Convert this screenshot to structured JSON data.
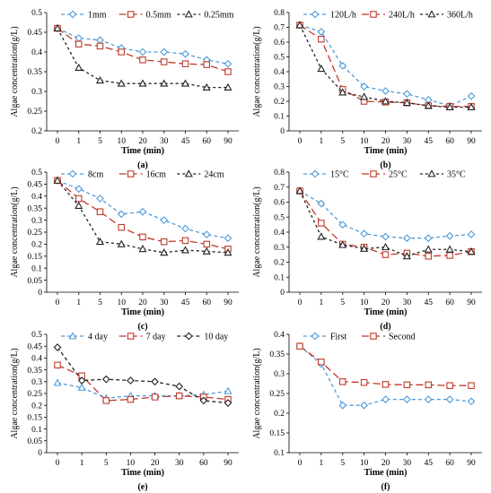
{
  "figure": {
    "xlabel": "Time (min)",
    "ylabel": "Algae concentration(g/L)",
    "x_ticks": [
      "0",
      "1",
      "5",
      "10",
      "20",
      "30",
      "45",
      "60",
      "90"
    ]
  },
  "chart_data": [
    {
      "type": "line",
      "panel_label": "(a)",
      "xlabel": "Time (min)",
      "ylabel": "Algae concentration(g/L)",
      "categories": [
        "0",
        "1",
        "5",
        "10",
        "20",
        "30",
        "45",
        "60",
        "90"
      ],
      "ylim": [
        0.2,
        0.5
      ],
      "yticks": [
        "0.2",
        "0.25",
        "0.3",
        "0.35",
        "0.4",
        "0.45",
        "0.5"
      ],
      "legend": "top",
      "grid": false,
      "series": [
        {
          "name": "1mm",
          "color": "#4F9BD9",
          "marker": "diamond",
          "dash": "4,3",
          "values": [
            0.46,
            0.435,
            0.43,
            0.41,
            0.4,
            0.4,
            0.395,
            0.38,
            0.37
          ]
        },
        {
          "name": "0.5mm",
          "color": "#C0392B",
          "marker": "square",
          "dash": "8,4",
          "values": [
            0.46,
            0.42,
            0.415,
            0.4,
            0.38,
            0.375,
            0.37,
            0.368,
            0.35
          ]
        },
        {
          "name": "0.25mm",
          "color": "#222222",
          "marker": "triangle",
          "dash": "3,3",
          "values": [
            0.46,
            0.36,
            0.328,
            0.32,
            0.32,
            0.32,
            0.32,
            0.31,
            0.31
          ]
        }
      ]
    },
    {
      "type": "line",
      "panel_label": "(b)",
      "xlabel": "Time (min)",
      "ylabel": "Algae concentration(g/L)",
      "categories": [
        "0",
        "1",
        "5",
        "10",
        "20",
        "30",
        "45",
        "60",
        "90"
      ],
      "ylim": [
        0,
        0.8
      ],
      "yticks": [
        "0",
        "0.1",
        "0.2",
        "0.3",
        "0.4",
        "0.5",
        "0.6",
        "0.7",
        "0.8"
      ],
      "legend": "top",
      "grid": false,
      "series": [
        {
          "name": "120L/h",
          "color": "#4F9BD9",
          "marker": "diamond",
          "dash": "4,3",
          "values": [
            0.715,
            0.67,
            0.44,
            0.3,
            0.27,
            0.25,
            0.21,
            0.17,
            0.235
          ]
        },
        {
          "name": "240L/h",
          "color": "#C0392B",
          "marker": "square",
          "dash": "8,4",
          "values": [
            0.715,
            0.62,
            0.28,
            0.2,
            0.195,
            0.19,
            0.17,
            0.165,
            0.165
          ]
        },
        {
          "name": "360L/h",
          "color": "#222222",
          "marker": "triangle",
          "dash": "3,3",
          "values": [
            0.715,
            0.42,
            0.26,
            0.23,
            0.2,
            0.19,
            0.17,
            0.16,
            0.16
          ]
        }
      ]
    },
    {
      "type": "line",
      "panel_label": "(c)",
      "xlabel": "Time (min)",
      "ylabel": "Algae concentration(g/L)",
      "categories": [
        "0",
        "1",
        "5",
        "10",
        "20",
        "30",
        "45",
        "60",
        "90"
      ],
      "ylim": [
        0,
        0.5
      ],
      "yticks": [
        "0",
        "0.05",
        "0.1",
        "0.15",
        "0.2",
        "0.25",
        "0.3",
        "0.35",
        "0.4",
        "0.45",
        "0.5"
      ],
      "legend": "top",
      "grid": false,
      "series": [
        {
          "name": "8cm",
          "color": "#4F9BD9",
          "marker": "diamond",
          "dash": "4,3",
          "values": [
            0.465,
            0.43,
            0.39,
            0.325,
            0.335,
            0.3,
            0.265,
            0.24,
            0.225
          ]
        },
        {
          "name": "16cm",
          "color": "#C0392B",
          "marker": "square",
          "dash": "8,4",
          "values": [
            0.465,
            0.39,
            0.335,
            0.27,
            0.23,
            0.21,
            0.215,
            0.2,
            0.18
          ]
        },
        {
          "name": "24cm",
          "color": "#222222",
          "marker": "triangle",
          "dash": "3,3",
          "values": [
            0.465,
            0.36,
            0.21,
            0.2,
            0.18,
            0.165,
            0.175,
            0.17,
            0.165
          ]
        }
      ]
    },
    {
      "type": "line",
      "panel_label": "(d)",
      "xlabel": "Time (min)",
      "ylabel": "Algae concentration(g/L)",
      "categories": [
        "0",
        "1",
        "5",
        "10",
        "20",
        "30",
        "45",
        "60",
        "90"
      ],
      "ylim": [
        0,
        0.8
      ],
      "yticks": [
        "0",
        "0.1",
        "0.2",
        "0.3",
        "0.4",
        "0.5",
        "0.6",
        "0.7",
        "0.8"
      ],
      "legend": "top",
      "grid": false,
      "series": [
        {
          "name": "15°C",
          "color": "#4F9BD9",
          "marker": "diamond",
          "dash": "4,3",
          "values": [
            0.675,
            0.59,
            0.45,
            0.39,
            0.37,
            0.36,
            0.36,
            0.375,
            0.385
          ]
        },
        {
          "name": "25°C",
          "color": "#C0392B",
          "marker": "square",
          "dash": "8,4",
          "values": [
            0.675,
            0.46,
            0.32,
            0.3,
            0.25,
            0.26,
            0.24,
            0.245,
            0.27
          ]
        },
        {
          "name": "35°C",
          "color": "#222222",
          "marker": "triangle",
          "dash": "3,3",
          "values": [
            0.675,
            0.37,
            0.315,
            0.29,
            0.3,
            0.24,
            0.285,
            0.285,
            0.27
          ]
        }
      ]
    },
    {
      "type": "line",
      "panel_label": "(e)",
      "xlabel": "Time (min)",
      "ylabel": "Algae concentration(g/L)",
      "categories": [
        "0",
        "1",
        "5",
        "10",
        "20",
        "30",
        "60",
        "90"
      ],
      "ylim": [
        0,
        0.5
      ],
      "yticks": [
        "0",
        "0.05",
        "0.1",
        "0.15",
        "0.2",
        "0.25",
        "0.3",
        "0.35",
        "0.4",
        "0.45",
        "0.5"
      ],
      "legend": "top",
      "grid": false,
      "series": [
        {
          "name": "4 day",
          "color": "#4F9BD9",
          "marker": "triangle",
          "dash": "4,3",
          "values": [
            0.295,
            0.275,
            0.23,
            0.24,
            0.24,
            0.24,
            0.245,
            0.26
          ]
        },
        {
          "name": "7 day",
          "color": "#C0392B",
          "marker": "square",
          "dash": "8,4",
          "values": [
            0.37,
            0.325,
            0.22,
            0.225,
            0.235,
            0.24,
            0.235,
            0.225
          ]
        },
        {
          "name": "10 day",
          "color": "#222222",
          "marker": "diamond",
          "dash": "4,3",
          "values": [
            0.445,
            0.305,
            0.31,
            0.305,
            0.3,
            0.28,
            0.22,
            0.21
          ]
        }
      ]
    },
    {
      "type": "line",
      "panel_label": "(f)",
      "xlabel": "Time (min)",
      "ylabel": "Algae concentration(g/L)",
      "categories": [
        "0",
        "1",
        "5",
        "10",
        "20",
        "30",
        "45",
        "60",
        "90"
      ],
      "ylim": [
        0.1,
        0.4
      ],
      "yticks": [
        "0.1",
        "0.15",
        "0.2",
        "0.25",
        "0.3",
        "0.35",
        "0.4"
      ],
      "legend": "top",
      "grid": false,
      "series": [
        {
          "name": "First",
          "color": "#4F9BD9",
          "marker": "diamond",
          "dash": "4,3",
          "values": [
            0.37,
            0.325,
            0.22,
            0.22,
            0.235,
            0.235,
            0.235,
            0.235,
            0.23
          ]
        },
        {
          "name": "Second",
          "color": "#C0392B",
          "marker": "square",
          "dash": "8,4",
          "values": [
            0.37,
            0.33,
            0.28,
            0.278,
            0.273,
            0.272,
            0.272,
            0.27,
            0.27
          ]
        }
      ]
    }
  ]
}
